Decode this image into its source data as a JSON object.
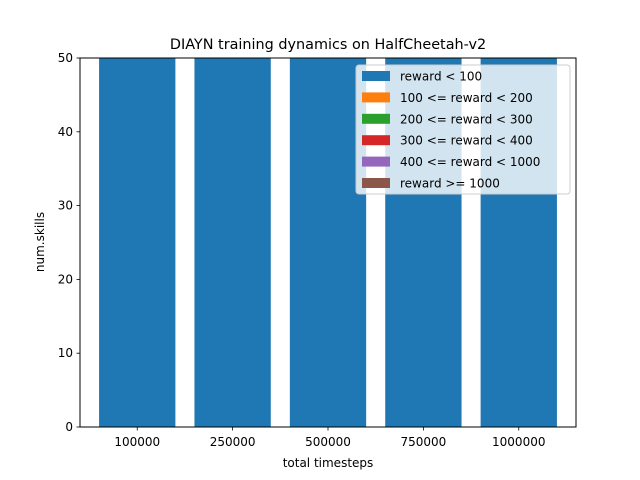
{
  "chart_data": {
    "type": "bar",
    "stacked": true,
    "title": "DIAYN training dynamics on HalfCheetah-v2",
    "xlabel": "total timesteps",
    "ylabel": "num.skills",
    "categories": [
      "100000",
      "250000",
      "500000",
      "750000",
      "1000000"
    ],
    "ylim": [
      0,
      50
    ],
    "yticks": [
      0,
      10,
      20,
      30,
      40,
      50
    ],
    "grid": false,
    "legend_position": "top-right",
    "series": [
      {
        "name": "reward < 100",
        "color": "#1f77b4",
        "values": [
          50,
          50,
          50,
          50,
          50
        ]
      },
      {
        "name": "100 <= reward < 200",
        "color": "#ff7f0e",
        "values": [
          0,
          0,
          0,
          0,
          0
        ]
      },
      {
        "name": "200 <= reward < 300",
        "color": "#2ca02c",
        "values": [
          0,
          0,
          0,
          0,
          0
        ]
      },
      {
        "name": "300 <= reward < 400",
        "color": "#d62728",
        "values": [
          0,
          0,
          0,
          0,
          0
        ]
      },
      {
        "name": "400 <= reward < 1000",
        "color": "#9467bd",
        "values": [
          0,
          0,
          0,
          0,
          0
        ]
      },
      {
        "name": "reward >= 1000",
        "color": "#8c564b",
        "values": [
          0,
          0,
          0,
          0,
          0
        ]
      }
    ]
  }
}
